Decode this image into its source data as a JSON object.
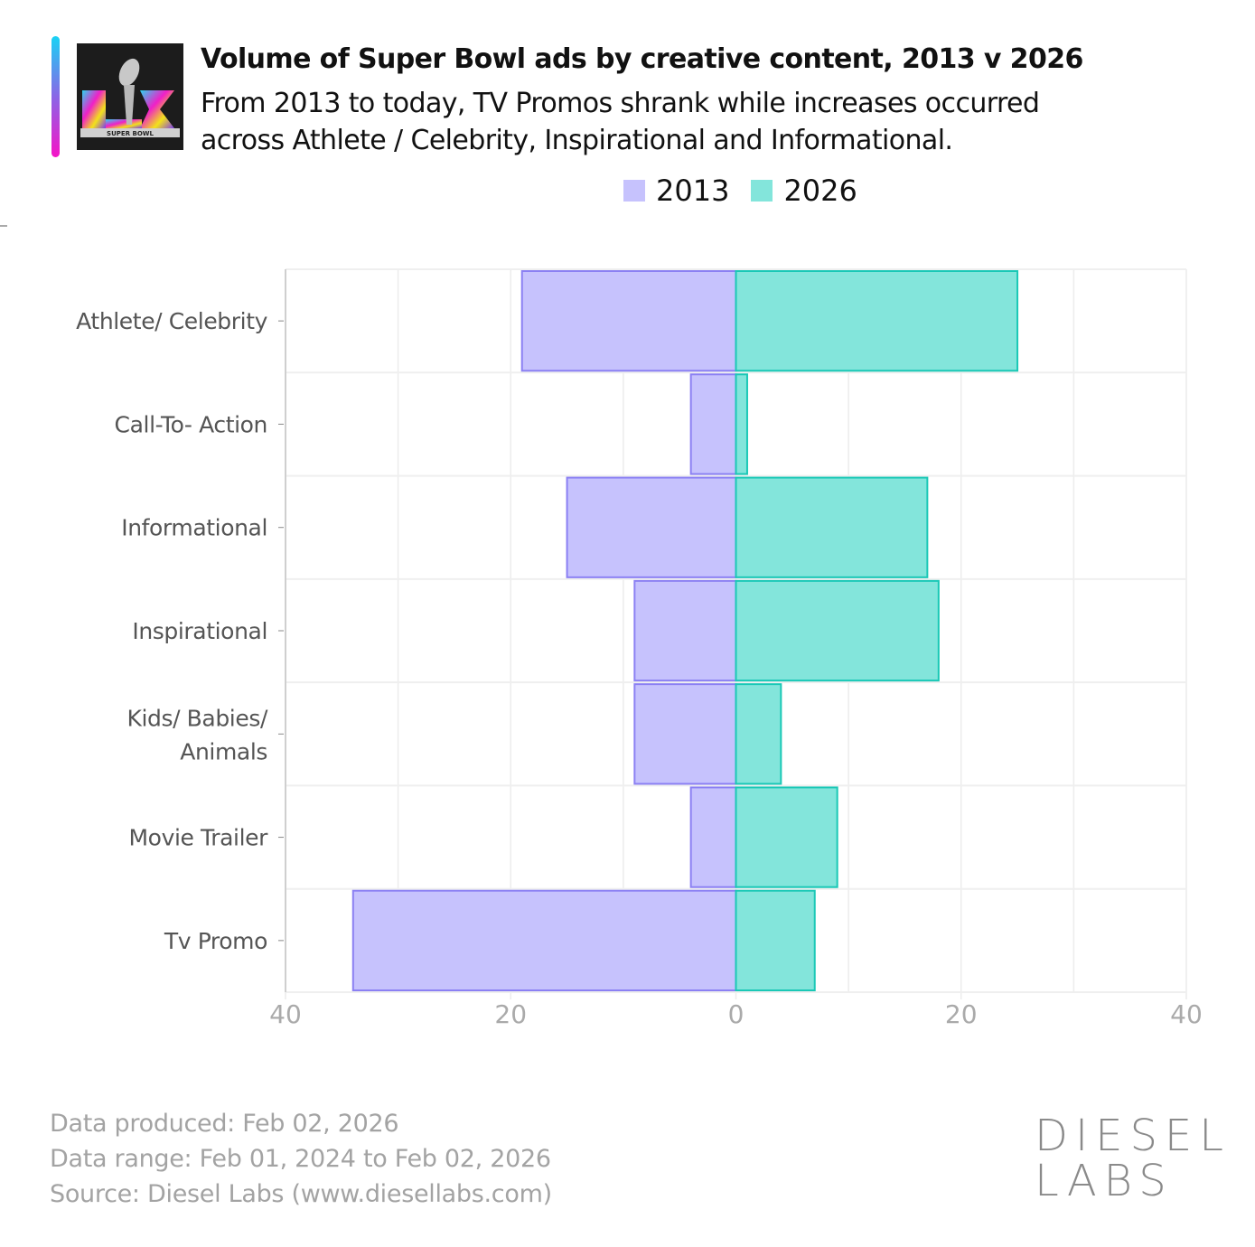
{
  "header": {
    "title": "Volume of Super Bowl ads by creative content, 2013 v 2026",
    "subtitle": "From 2013 to today, TV Promos shrank while increases occurred across Athlete / Celebrity, Inspirational and Informational.",
    "logo_text": "SUPER BOWL",
    "accent_colors": [
      "#19d3f5",
      "#8a66e6",
      "#f514c7"
    ]
  },
  "legend": [
    {
      "label": "2013",
      "color": "#c6c2fd"
    },
    {
      "label": "2026",
      "color": "#83e5db"
    }
  ],
  "chart_data": {
    "type": "bar",
    "orientation": "horizontal-diverging",
    "title": "Volume of Super Bowl ads by creative content, 2013 v 2026",
    "categories": [
      "Athlete/ Celebrity",
      "Call-To- Action",
      "Informational",
      "Inspirational",
      "Kids/ Babies/ Animals",
      "Movie Trailer",
      "Tv Promo"
    ],
    "series": [
      {
        "name": "2013",
        "direction": "left",
        "fill": "#c6c2fd",
        "stroke": "#8b80f3",
        "values": [
          19,
          4,
          15,
          9,
          9,
          4,
          34
        ]
      },
      {
        "name": "2026",
        "direction": "right",
        "fill": "#83e5db",
        "stroke": "#1ac8b6",
        "values": [
          25,
          1,
          17,
          18,
          4,
          9,
          7
        ]
      }
    ],
    "xlim": [
      -40,
      40
    ],
    "xticks": [
      -40,
      -20,
      0,
      20,
      40
    ],
    "xtick_labels": [
      "40",
      "20",
      "0",
      "20",
      "40"
    ],
    "grid": true,
    "legend_position": "top-right"
  },
  "footer": {
    "produced": "Data produced: Feb 02, 2026",
    "range": "Data range: Feb 01, 2024 to Feb 02, 2026",
    "source": "Source: Diesel Labs (www.diesellabs.com)"
  },
  "brand": {
    "line1": "DIESEL",
    "line2": "LABS"
  }
}
